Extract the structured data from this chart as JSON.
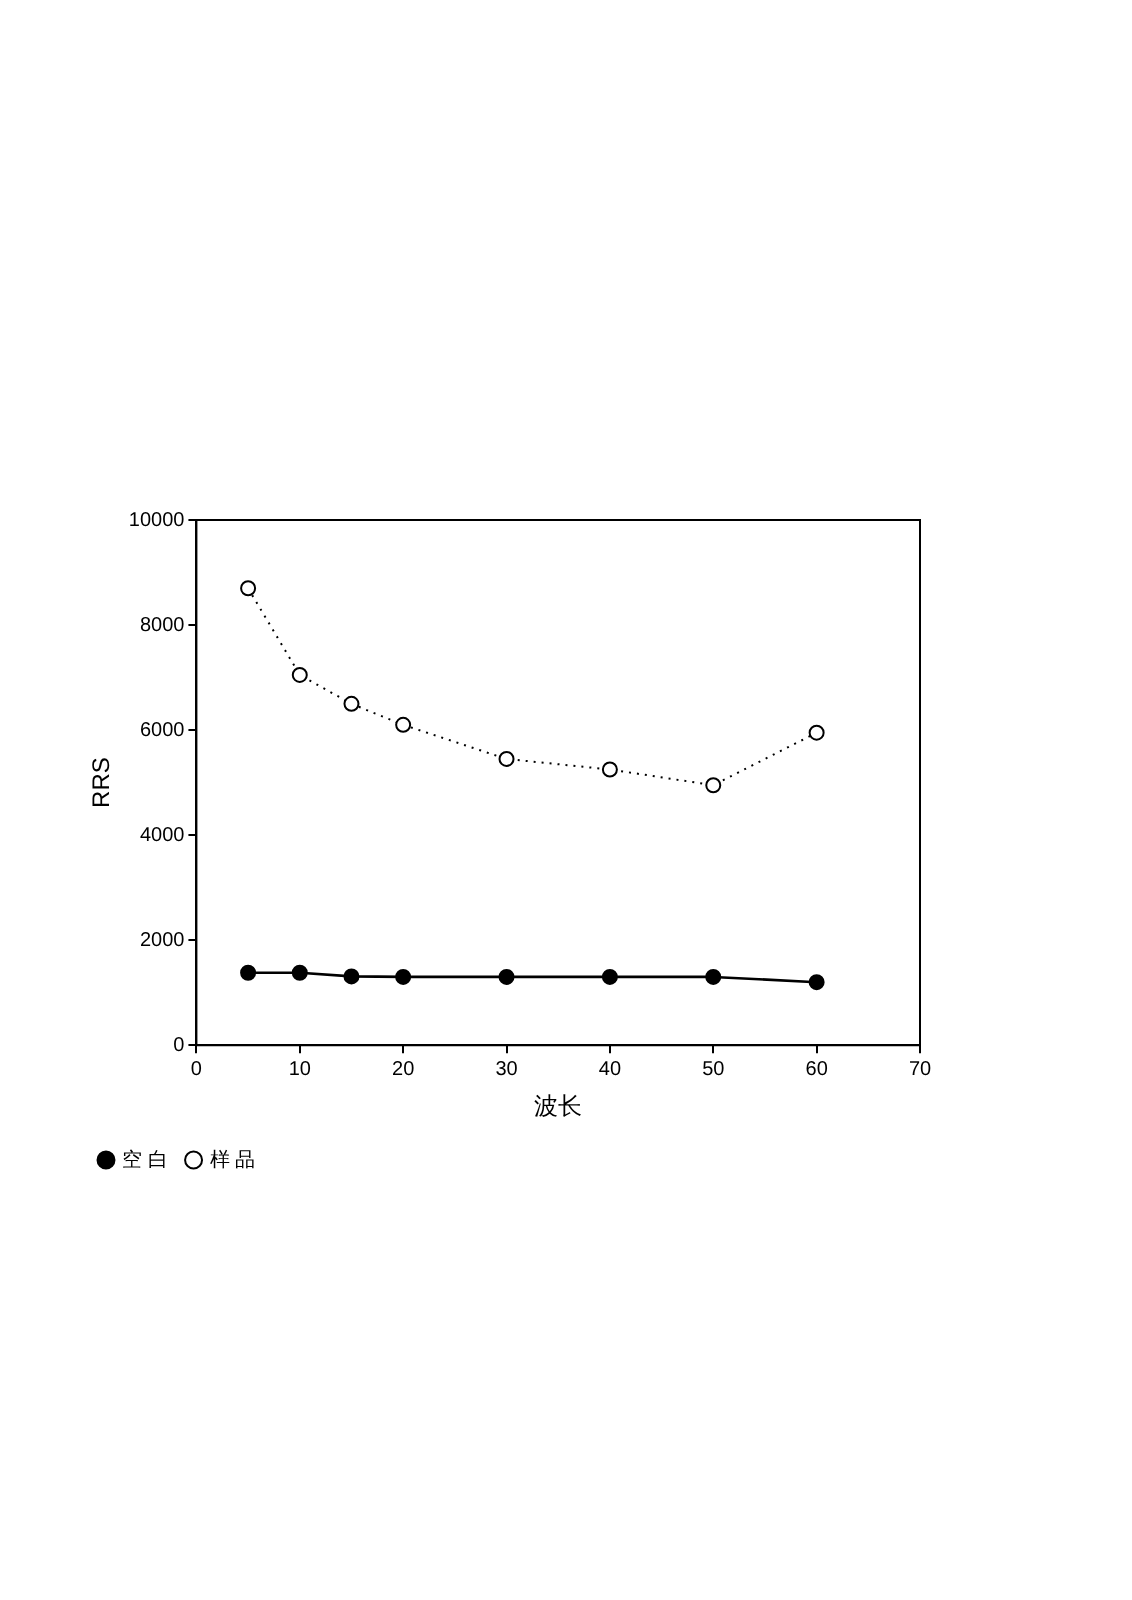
{
  "chart_data": {
    "type": "line",
    "xlabel": "波长",
    "ylabel": "RRS",
    "x": [
      5,
      10,
      15,
      20,
      30,
      40,
      50,
      60
    ],
    "series": [
      {
        "name": "空 白",
        "color": "#000000",
        "values": [
          1380,
          1380,
          1310,
          1300,
          1300,
          1300,
          1300,
          1200
        ],
        "line_style": "solid",
        "marker": "circle"
      },
      {
        "name": "样 品",
        "color": "#000000",
        "values": [
          8700,
          7050,
          6500,
          6100,
          5450,
          5250,
          4950,
          5950
        ],
        "line_style": "dotted",
        "marker": "circle"
      }
    ],
    "xlim": [
      0,
      70
    ],
    "xticks": [
      0,
      10,
      20,
      30,
      40,
      50,
      60,
      70
    ],
    "ylim": [
      0,
      10000
    ],
    "yticks": [
      0,
      2000,
      4000,
      6000,
      8000,
      10000
    ],
    "grid": false,
    "legend": "bottom left"
  }
}
